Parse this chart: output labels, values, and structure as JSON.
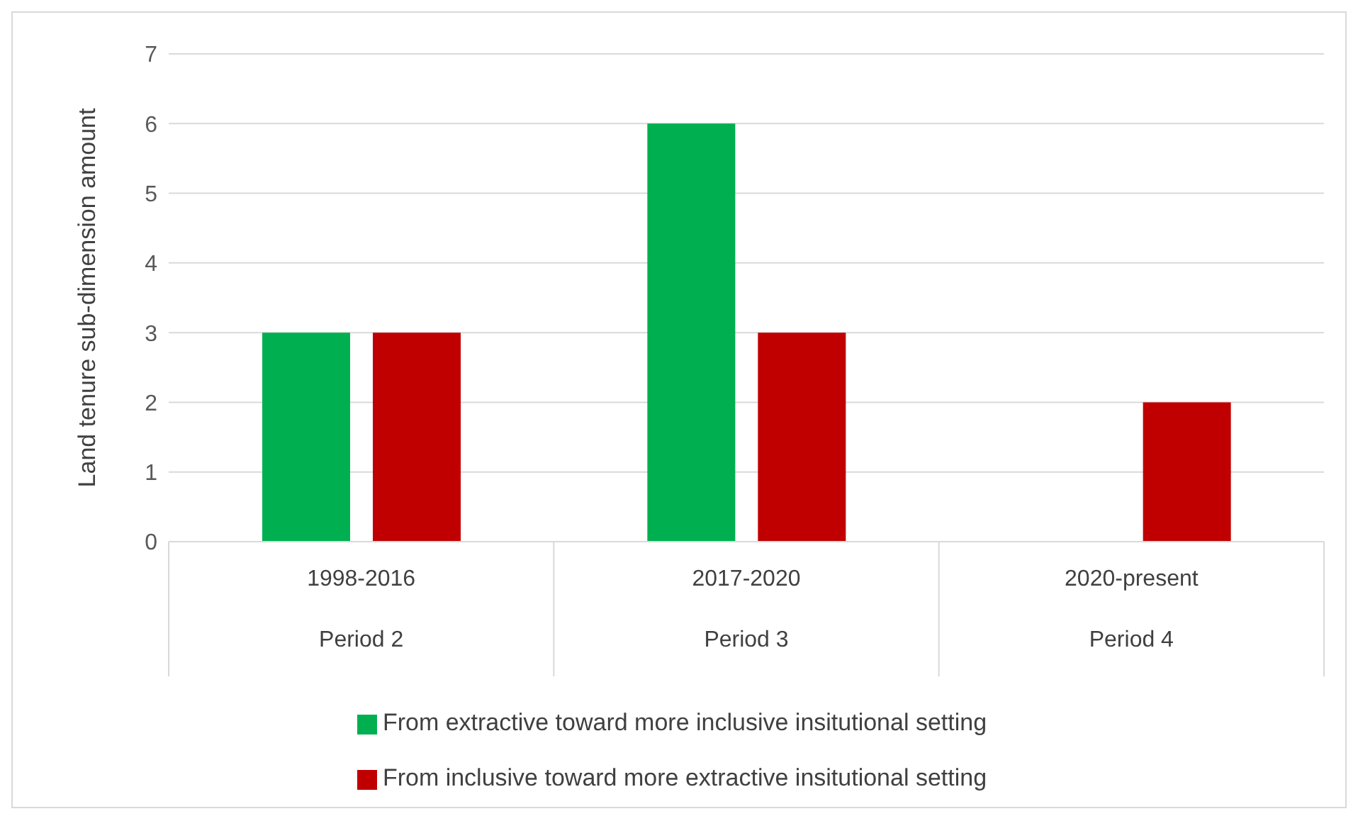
{
  "chart_data": {
    "type": "bar",
    "ylabel": "Land tenure sub-dimension amount",
    "categories": [
      "1998-2016\nPeriod 2",
      "2017-2020\nPeriod 3",
      "2020-present\nPeriod 4"
    ],
    "series": [
      {
        "name": "From extractive toward more inclusive insitutional setting",
        "color": "#00b050",
        "values": [
          3,
          6,
          0
        ]
      },
      {
        "name": "From inclusive toward more extractive insitutional setting",
        "color": "#c00000",
        "values": [
          3,
          3,
          2
        ]
      }
    ],
    "ylim": [
      0,
      7
    ],
    "yticks": [
      0,
      1,
      2,
      3,
      4,
      5,
      6,
      7
    ],
    "grid": "y",
    "legend": "bottom"
  }
}
